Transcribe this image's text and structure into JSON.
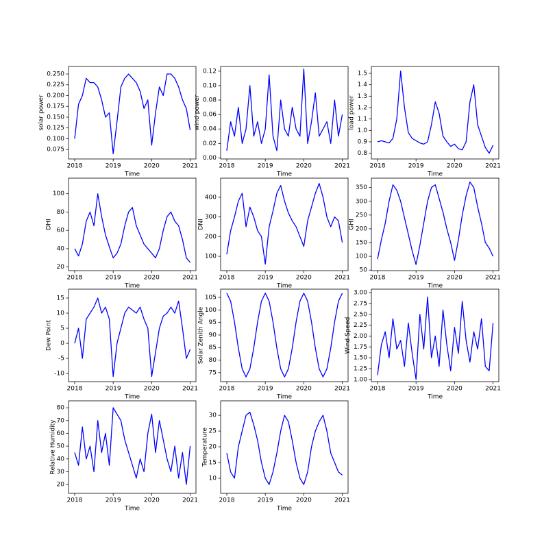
{
  "chart_data": [
    {
      "type": "line",
      "ylabel": "solar power",
      "xlabel": "Time",
      "color": "#0000ff",
      "x": [
        2018.0,
        2018.1,
        2018.2,
        2018.3,
        2018.4,
        2018.5,
        2018.6,
        2018.7,
        2018.8,
        2018.9,
        2019.0,
        2019.1,
        2019.2,
        2019.3,
        2019.4,
        2019.5,
        2019.6,
        2019.7,
        2019.8,
        2019.9,
        2020.0,
        2020.1,
        2020.2,
        2020.3,
        2020.4,
        2020.5,
        2020.6,
        2020.7,
        2020.8,
        2020.9,
        2021.0
      ],
      "values": [
        0.1,
        0.18,
        0.2,
        0.24,
        0.23,
        0.23,
        0.22,
        0.19,
        0.15,
        0.16,
        0.065,
        0.14,
        0.22,
        0.24,
        0.25,
        0.24,
        0.23,
        0.21,
        0.17,
        0.19,
        0.085,
        0.16,
        0.22,
        0.2,
        0.25,
        0.25,
        0.24,
        0.22,
        0.19,
        0.17,
        0.12
      ],
      "xlim": [
        2017.84,
        2021.15
      ],
      "xticks": [
        2018,
        2019,
        2020,
        2021
      ],
      "ylim": [
        0.053,
        0.2675
      ],
      "yticks": [
        0.075,
        {
          "value": 0.1,
          "label": "0.100"
        },
        0.125,
        {
          "value": 0.15,
          "label": "0.150"
        },
        0.175,
        {
          "value": 0.2,
          "label": "0.200"
        },
        0.225,
        {
          "value": 0.25,
          "label": "0.250"
        }
      ]
    },
    {
      "type": "line",
      "ylabel": "wind power",
      "xlabel": "Time",
      "color": "#0000ff",
      "x": [
        2018.0,
        2018.1,
        2018.2,
        2018.3,
        2018.4,
        2018.5,
        2018.6,
        2018.7,
        2018.8,
        2018.9,
        2019.0,
        2019.1,
        2019.2,
        2019.3,
        2019.4,
        2019.5,
        2019.6,
        2019.7,
        2019.8,
        2019.9,
        2020.0,
        2020.1,
        2020.2,
        2020.3,
        2020.4,
        2020.5,
        2020.6,
        2020.7,
        2020.8,
        2020.9,
        2021.0
      ],
      "values": [
        0.01,
        0.05,
        0.03,
        0.07,
        0.02,
        0.04,
        0.1,
        0.03,
        0.05,
        0.02,
        0.04,
        0.115,
        0.03,
        0.01,
        0.08,
        0.04,
        0.03,
        0.07,
        0.04,
        0.03,
        0.123,
        0.02,
        0.05,
        0.09,
        0.03,
        0.04,
        0.05,
        0.02,
        0.08,
        0.03,
        0.06
      ],
      "xlim": [
        2017.84,
        2021.15
      ],
      "xticks": [
        2018,
        2019,
        2020,
        2021
      ],
      "ylim": [
        -0.0015,
        0.1265
      ],
      "yticks": [
        {
          "value": 0,
          "label": "0.00"
        },
        0.02,
        0.04,
        0.06,
        0.08,
        {
          "value": 0.1,
          "label": "0.10"
        },
        0.12
      ]
    },
    {
      "type": "line",
      "ylabel": "load power",
      "xlabel": "Time",
      "color": "#0000ff",
      "x": [
        2018.0,
        2018.1,
        2018.2,
        2018.3,
        2018.4,
        2018.5,
        2018.6,
        2018.7,
        2018.8,
        2018.9,
        2019.0,
        2019.1,
        2019.2,
        2019.3,
        2019.4,
        2019.5,
        2019.6,
        2019.7,
        2019.8,
        2019.9,
        2020.0,
        2020.1,
        2020.2,
        2020.3,
        2020.4,
        2020.5,
        2020.6,
        2020.7,
        2020.8,
        2020.9,
        2021.0
      ],
      "values": [
        0.9,
        0.91,
        0.9,
        0.89,
        0.93,
        1.1,
        1.52,
        1.2,
        0.98,
        0.93,
        0.91,
        0.89,
        0.88,
        0.9,
        1.05,
        1.25,
        1.15,
        0.95,
        0.9,
        0.86,
        0.88,
        0.84,
        0.83,
        0.9,
        1.25,
        1.4,
        1.05,
        0.95,
        0.85,
        0.8,
        0.87
      ],
      "xlim": [
        2017.84,
        2021.15
      ],
      "xticks": [
        2018,
        2019,
        2020,
        2021
      ],
      "ylim": [
        0.75,
        1.56
      ],
      "yticks": [
        0.8,
        0.9,
        {
          "value": 1,
          "label": "1.0"
        },
        1.1,
        1.2,
        1.3,
        1.4,
        1.5
      ]
    },
    {
      "type": "line",
      "ylabel": "DHI",
      "xlabel": "Time",
      "color": "#0000ff",
      "x": [
        2018.0,
        2018.1,
        2018.2,
        2018.3,
        2018.4,
        2018.5,
        2018.6,
        2018.7,
        2018.8,
        2018.9,
        2019.0,
        2019.1,
        2019.2,
        2019.3,
        2019.4,
        2019.5,
        2019.6,
        2019.7,
        2019.8,
        2019.9,
        2020.0,
        2020.1,
        2020.2,
        2020.3,
        2020.4,
        2020.5,
        2020.6,
        2020.7,
        2020.8,
        2020.9,
        2021.0
      ],
      "values": [
        40,
        32,
        45,
        70,
        80,
        65,
        100,
        75,
        55,
        42,
        30,
        35,
        45,
        65,
        80,
        85,
        65,
        55,
        45,
        40,
        35,
        30,
        40,
        60,
        75,
        80,
        70,
        65,
        50,
        30,
        25
      ],
      "xlim": [
        2017.84,
        2021.15
      ],
      "xticks": [
        2018,
        2019,
        2020,
        2021
      ],
      "ylim": [
        16,
        117
      ],
      "yticks": [
        20,
        40,
        60,
        80,
        100
      ]
    },
    {
      "type": "line",
      "ylabel": "DNI",
      "xlabel": "Time",
      "color": "#0000ff",
      "x": [
        2018.0,
        2018.1,
        2018.2,
        2018.3,
        2018.4,
        2018.5,
        2018.6,
        2018.7,
        2018.8,
        2018.9,
        2019.0,
        2019.1,
        2019.2,
        2019.3,
        2019.4,
        2019.5,
        2019.6,
        2019.7,
        2019.8,
        2019.9,
        2020.0,
        2020.1,
        2020.2,
        2020.3,
        2020.4,
        2020.5,
        2020.6,
        2020.7,
        2020.8,
        2020.9,
        2021.0
      ],
      "values": [
        110,
        230,
        300,
        380,
        420,
        250,
        350,
        300,
        230,
        200,
        60,
        250,
        330,
        420,
        460,
        380,
        320,
        280,
        250,
        200,
        150,
        280,
        350,
        420,
        470,
        400,
        300,
        250,
        300,
        280,
        170
      ],
      "xlim": [
        2017.84,
        2021.15
      ],
      "xticks": [
        2018,
        2019,
        2020,
        2021
      ],
      "ylim": [
        27,
        497
      ],
      "yticks": [
        100,
        200,
        300,
        400
      ]
    },
    {
      "type": "line",
      "ylabel": "GHI",
      "xlabel": "Time",
      "color": "#0000ff",
      "x": [
        2018.0,
        2018.1,
        2018.2,
        2018.3,
        2018.4,
        2018.5,
        2018.6,
        2018.7,
        2018.8,
        2018.9,
        2019.0,
        2019.1,
        2019.2,
        2019.3,
        2019.4,
        2019.5,
        2019.6,
        2019.7,
        2019.8,
        2019.9,
        2020.0,
        2020.1,
        2020.2,
        2020.3,
        2020.4,
        2020.5,
        2020.6,
        2020.7,
        2020.8,
        2020.9,
        2021.0
      ],
      "values": [
        90,
        160,
        220,
        300,
        360,
        340,
        300,
        240,
        180,
        120,
        70,
        140,
        220,
        300,
        350,
        360,
        310,
        260,
        200,
        150,
        85,
        160,
        250,
        320,
        370,
        350,
        280,
        220,
        150,
        130,
        100
      ],
      "xlim": [
        2017.84,
        2021.15
      ],
      "xticks": [
        2018,
        2019,
        2020,
        2021
      ],
      "ylim": [
        48,
        384
      ],
      "yticks": [
        50,
        100,
        150,
        200,
        250,
        300,
        350
      ]
    },
    {
      "type": "line",
      "ylabel": "Dew Point",
      "xlabel": "Time",
      "color": "#0000ff",
      "x": [
        2018.0,
        2018.1,
        2018.2,
        2018.3,
        2018.4,
        2018.5,
        2018.6,
        2018.7,
        2018.8,
        2018.9,
        2019.0,
        2019.1,
        2019.2,
        2019.3,
        2019.4,
        2019.5,
        2019.6,
        2019.7,
        2019.8,
        2019.9,
        2020.0,
        2020.1,
        2020.2,
        2020.3,
        2020.4,
        2020.5,
        2020.6,
        2020.7,
        2020.8,
        2020.9,
        2021.0
      ],
      "values": [
        0,
        5,
        -5,
        8,
        10,
        12,
        15,
        10,
        12,
        8,
        -11,
        0,
        5,
        10,
        12,
        11,
        10,
        12,
        8,
        5,
        -11,
        -3,
        5,
        9,
        10,
        12,
        10,
        14,
        5,
        -5,
        -2
      ],
      "xlim": [
        2017.84,
        2021.15
      ],
      "xticks": [
        2018,
        2019,
        2020,
        2021
      ],
      "ylim": [
        -12.7,
        17.95
      ],
      "yticks": [
        -10,
        -5,
        0,
        5,
        10,
        15
      ]
    },
    {
      "type": "line",
      "ylabel": "Solar Zenith Angle",
      "xlabel": "Time",
      "color": "#0000ff",
      "x": [
        2018.0,
        2018.1,
        2018.2,
        2018.3,
        2018.4,
        2018.5,
        2018.6,
        2018.7,
        2018.8,
        2018.9,
        2019.0,
        2019.1,
        2019.2,
        2019.3,
        2019.4,
        2019.5,
        2019.6,
        2019.7,
        2019.8,
        2019.9,
        2020.0,
        2020.1,
        2020.2,
        2020.3,
        2020.4,
        2020.5,
        2020.6,
        2020.7,
        2020.8,
        2020.9,
        2021.0
      ],
      "values": [
        106.7,
        103.5,
        95.2,
        84.8,
        76.5,
        73.3,
        76.5,
        84.8,
        95.2,
        103.5,
        106.7,
        103.5,
        95.2,
        84.8,
        76.5,
        73.3,
        76.5,
        84.8,
        95.2,
        103.5,
        106.7,
        103.5,
        95.2,
        84.8,
        76.5,
        73.3,
        76.5,
        84.8,
        95.2,
        103.5,
        106.7
      ],
      "xlim": [
        2017.84,
        2021.15
      ],
      "xticks": [
        2018,
        2019,
        2020,
        2021
      ],
      "ylim": [
        71.4,
        108.3
      ],
      "yticks": [
        75,
        80,
        85,
        90,
        95,
        100,
        105
      ]
    },
    {
      "type": "line",
      "ylabel": "Wind Speed",
      "xlabel": "Time",
      "color": "#0000ff",
      "x": [
        2018.0,
        2018.1,
        2018.2,
        2018.3,
        2018.4,
        2018.5,
        2018.6,
        2018.7,
        2018.8,
        2018.9,
        2019.0,
        2019.1,
        2019.2,
        2019.3,
        2019.4,
        2019.5,
        2019.6,
        2019.7,
        2019.8,
        2019.9,
        2020.0,
        2020.1,
        2020.2,
        2020.3,
        2020.4,
        2020.5,
        2020.6,
        2020.7,
        2020.8,
        2020.9,
        2021.0
      ],
      "values": [
        1.1,
        1.8,
        2.1,
        1.5,
        2.4,
        1.7,
        1.9,
        1.3,
        2.3,
        1.6,
        1.0,
        2.5,
        1.7,
        2.9,
        1.5,
        2.0,
        1.3,
        2.6,
        1.8,
        1.2,
        2.2,
        1.6,
        2.8,
        1.9,
        1.4,
        2.1,
        1.7,
        2.4,
        1.3,
        1.2,
        2.3
      ],
      "xlim": [
        2017.84,
        2021.15
      ],
      "xticks": [
        2018,
        2019,
        2020,
        2021
      ],
      "ylim": [
        0.95,
        3.08
      ],
      "yticks": [
        {
          "value": 1,
          "label": "1.00"
        },
        1.25,
        {
          "value": 1.5,
          "label": "1.50"
        },
        1.75,
        {
          "value": 2,
          "label": "2.00"
        },
        2.25,
        {
          "value": 2.5,
          "label": "2.50"
        },
        2.75,
        {
          "value": 3,
          "label": "3.00"
        }
      ]
    },
    {
      "type": "line",
      "ylabel": "Relative Humidity",
      "xlabel": "Time",
      "color": "#0000ff",
      "x": [
        2018.0,
        2018.1,
        2018.2,
        2018.3,
        2018.4,
        2018.5,
        2018.6,
        2018.7,
        2018.8,
        2018.9,
        2019.0,
        2019.1,
        2019.2,
        2019.3,
        2019.4,
        2019.5,
        2019.6,
        2019.7,
        2019.8,
        2019.9,
        2020.0,
        2020.1,
        2020.2,
        2020.3,
        2020.4,
        2020.5,
        2020.6,
        2020.7,
        2020.8,
        2020.9,
        2021.0
      ],
      "values": [
        45,
        35,
        65,
        40,
        50,
        30,
        70,
        45,
        60,
        35,
        80,
        75,
        70,
        55,
        45,
        35,
        25,
        40,
        30,
        60,
        75,
        45,
        70,
        55,
        40,
        30,
        50,
        25,
        45,
        20,
        50
      ],
      "xlim": [
        2017.84,
        2021.15
      ],
      "xticks": [
        2018,
        2019,
        2020,
        2021
      ],
      "ylim": [
        13.1,
        85.4
      ],
      "yticks": [
        20,
        30,
        40,
        50,
        60,
        70,
        80
      ]
    },
    {
      "type": "line",
      "ylabel": "Temperature",
      "xlabel": "Time",
      "color": "#0000ff",
      "x": [
        2018.0,
        2018.1,
        2018.2,
        2018.3,
        2018.4,
        2018.5,
        2018.6,
        2018.7,
        2018.8,
        2018.9,
        2019.0,
        2019.1,
        2019.2,
        2019.3,
        2019.4,
        2019.5,
        2019.6,
        2019.7,
        2019.8,
        2019.9,
        2020.0,
        2020.1,
        2020.2,
        2020.3,
        2020.4,
        2020.5,
        2020.6,
        2020.7,
        2020.8,
        2020.9,
        2021.0
      ],
      "values": [
        18,
        12,
        10,
        20,
        25,
        30,
        31,
        27,
        22,
        15,
        10,
        8,
        12,
        18,
        25,
        30,
        28,
        22,
        15,
        10,
        8,
        12,
        20,
        25,
        28,
        30,
        25,
        18,
        15,
        12,
        11
      ],
      "xlim": [
        2017.84,
        2021.15
      ],
      "xticks": [
        2018,
        2019,
        2020,
        2021
      ],
      "ylim": [
        5.2,
        34.6
      ],
      "yticks": [
        10,
        15,
        20,
        25,
        30
      ]
    }
  ]
}
